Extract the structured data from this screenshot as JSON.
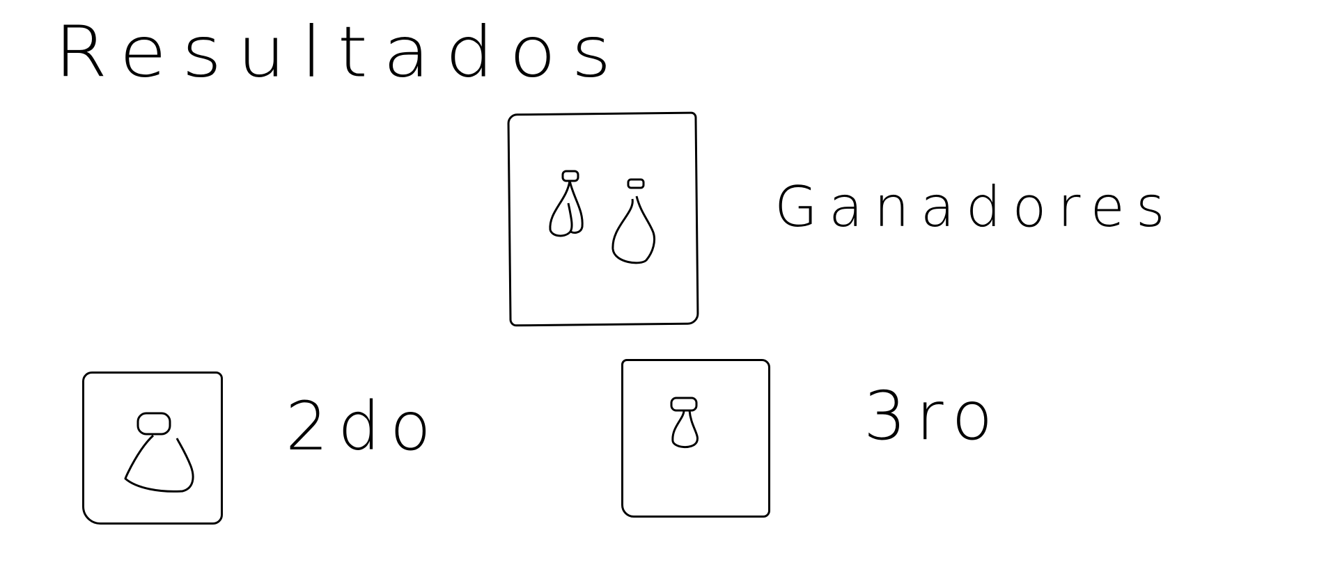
{
  "title": "Resultados",
  "podium": {
    "winners": {
      "label": "Ganadores",
      "icon": "two-people-icon"
    },
    "second": {
      "label": "2do",
      "icon": "person-icon"
    },
    "third": {
      "label": "3ro",
      "icon": "person-icon"
    }
  },
  "colors": {
    "ink": "#000000",
    "background": "#ffffff"
  }
}
